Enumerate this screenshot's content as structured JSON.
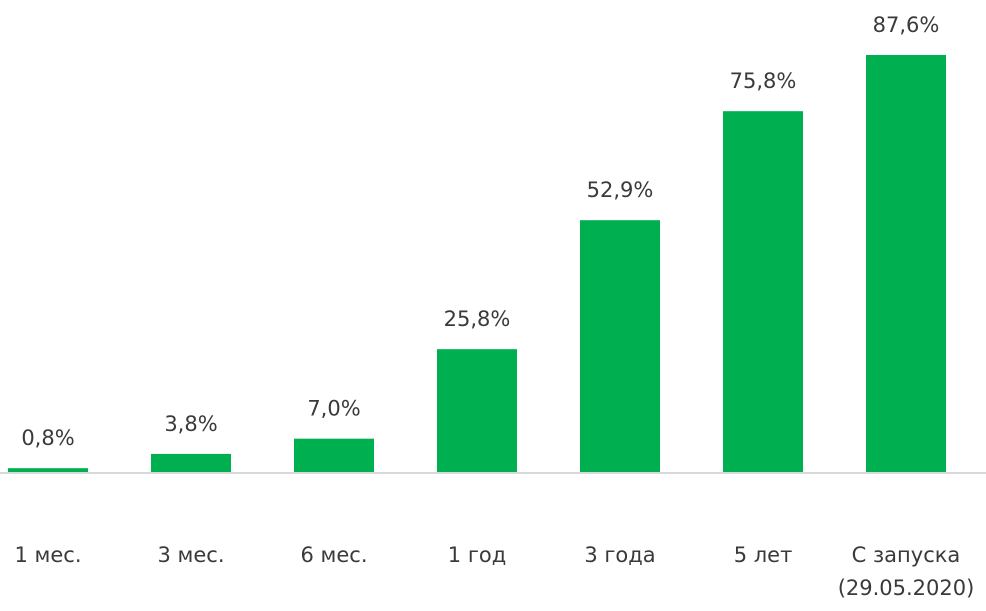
{
  "chart_data": {
    "type": "bar",
    "categories": [
      "1 мес.",
      "3 мес.",
      "6 мес.",
      "1 год",
      "3 года",
      "5 лет",
      [
        "С запуска",
        "(29.05.2020)"
      ]
    ],
    "values": [
      0.8,
      3.8,
      7.0,
      25.8,
      52.9,
      75.8,
      87.6
    ],
    "value_labels": [
      "0,8%",
      "3,8%",
      "7,0%",
      "25,8%",
      "52,9%",
      "75,8%",
      "87,6%"
    ],
    "bar_color": "#00b050",
    "axis_color": "#d9d9d9",
    "text_color": "#3a3a3a",
    "title": "",
    "xlabel": "",
    "ylabel": "",
    "ylim": [
      0,
      100
    ],
    "grid": false,
    "legend": "none"
  }
}
